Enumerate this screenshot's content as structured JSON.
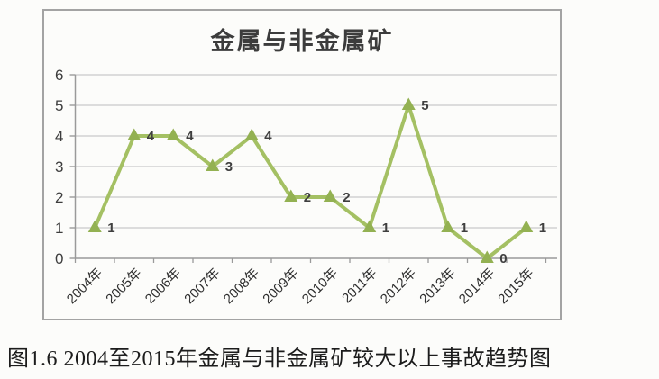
{
  "page": {
    "background": "#fcfcfa",
    "caption": "图1.6 2004至2015年金属与非金属矿较大以上事故趋势图"
  },
  "chart_data": {
    "type": "line",
    "title": "金属与非金属矿",
    "categories": [
      "2004年",
      "2005年",
      "2006年",
      "2007年",
      "2008年",
      "2009年",
      "2010年",
      "2011年",
      "2012年",
      "2013年",
      "2014年",
      "2015年"
    ],
    "values": [
      1,
      4,
      4,
      3,
      4,
      2,
      2,
      1,
      5,
      1,
      0,
      1
    ],
    "xlabel": "",
    "ylabel": "",
    "ylim": [
      0,
      6
    ],
    "yticks": [
      0,
      1,
      2,
      3,
      4,
      5,
      6
    ],
    "grid": true,
    "legend_position": "none",
    "marker": "triangle",
    "data_labels_visible": true,
    "colors": {
      "series_line": "#a4c063",
      "marker": "#93b152",
      "grid": "#c9c9c9",
      "axis": "#9a9a9a",
      "data_label": "#3f3f3f",
      "frame_border": "#a3a3a3",
      "background": "#fcfcfa"
    }
  }
}
